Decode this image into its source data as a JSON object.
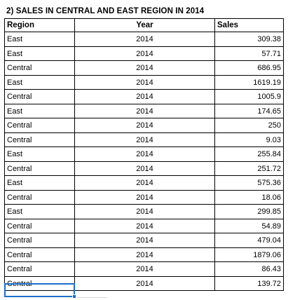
{
  "title": "2) SALES IN CENTRAL AND EAST REGION IN 2014",
  "headers": {
    "region": "Region",
    "year": "Year",
    "sales": "Sales"
  },
  "rows": [
    {
      "region": "East",
      "year": "2014",
      "sales": "309.38"
    },
    {
      "region": "East",
      "year": "2014",
      "sales": "57.71"
    },
    {
      "region": "Central",
      "year": "2014",
      "sales": "686.95"
    },
    {
      "region": "East",
      "year": "2014",
      "sales": "1619.19"
    },
    {
      "region": "Central",
      "year": "2014",
      "sales": "1005.9"
    },
    {
      "region": "East",
      "year": "2014",
      "sales": "174.65"
    },
    {
      "region": "Central",
      "year": "2014",
      "sales": "250"
    },
    {
      "region": "Central",
      "year": "2014",
      "sales": "9.03"
    },
    {
      "region": "East",
      "year": "2014",
      "sales": "255.84"
    },
    {
      "region": "Central",
      "year": "2014",
      "sales": "251.72"
    },
    {
      "region": "East",
      "year": "2014",
      "sales": "575.36"
    },
    {
      "region": "Central",
      "year": "2014",
      "sales": "18.06"
    },
    {
      "region": "East",
      "year": "2014",
      "sales": "299.85"
    },
    {
      "region": "Central",
      "year": "2014",
      "sales": "54.89"
    },
    {
      "region": "Central",
      "year": "2014",
      "sales": "479.04"
    },
    {
      "region": "Central",
      "year": "2014",
      "sales": "1879.06"
    },
    {
      "region": "Central",
      "year": "2014",
      "sales": "86.43"
    },
    {
      "region": "Central",
      "year": "2014",
      "sales": "139.72"
    }
  ],
  "colors": {
    "selection": "#1a6fc9",
    "border": "#000000"
  }
}
